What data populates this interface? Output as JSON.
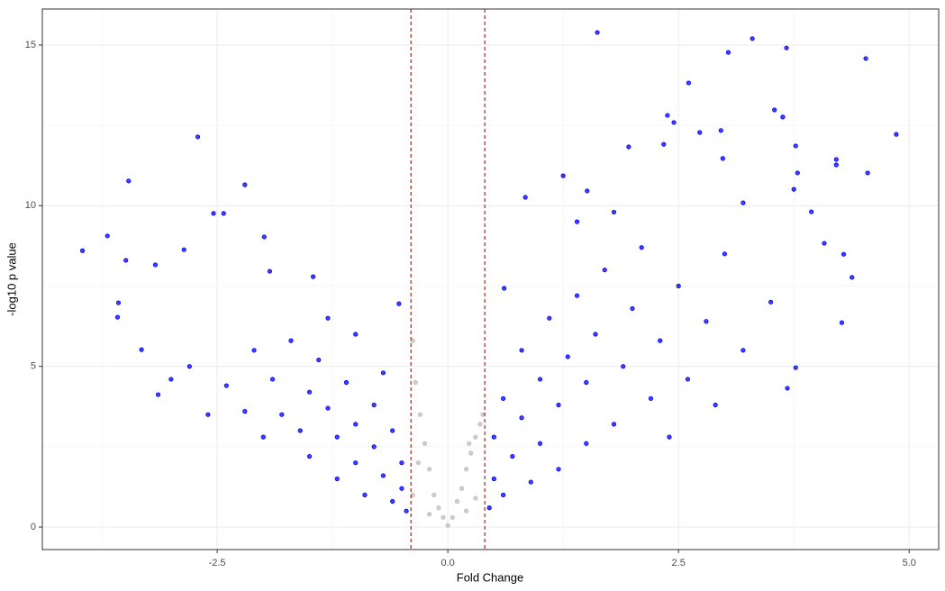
{
  "chart_data": {
    "type": "scatter",
    "x_label": "Fold Change",
    "y_label": "-log10 p value",
    "xlim": [
      -4.395,
      5.32
    ],
    "ylim": [
      -0.7,
      16.12
    ],
    "xticks": [
      -2.5,
      {
        "value": 0,
        "label": "0.0"
      },
      2.5,
      {
        "value": 5,
        "label": "5.0"
      }
    ],
    "yticks": [
      0,
      5,
      10,
      15
    ],
    "x_minor_grid": [
      -3.75,
      -1.25,
      1.25,
      3.75
    ],
    "y_minor_grid": [
      2.5,
      7.5,
      12.5
    ],
    "grid": true,
    "vlines": [
      -0.4,
      0.4
    ],
    "vline_color": "#8b0000",
    "series": [
      {
        "color": "#0000ff",
        "x": [
          -3.96,
          -3.69,
          -3.46,
          -2.71,
          -2.2,
          -2.54,
          -2.43,
          -1.99,
          -3.49,
          -2.86,
          -3.17,
          -3.57,
          -3.58,
          -3.32,
          -3.14,
          -1.93,
          -1.46,
          -0.53,
          -0.45,
          -0.5,
          -0.5,
          -0.6,
          -0.6,
          -0.7,
          -0.8,
          -0.8,
          -0.9,
          -1.0,
          -1.0,
          -1.1,
          -1.2,
          -1.2,
          -1.3,
          -1.4,
          -1.5,
          -1.5,
          -1.6,
          -1.7,
          -1.8,
          -1.9,
          -2.0,
          -2.1,
          -2.2,
          -2.4,
          -2.6,
          -2.8,
          -3.0,
          -0.7,
          -1.0,
          -1.3,
          1.62,
          3.3,
          3.04,
          3.67,
          4.53,
          2.61,
          3.54,
          3.63,
          2.38,
          2.45,
          4.86,
          2.73,
          2.96,
          3.77,
          2.34,
          1.96,
          4.21,
          4.21,
          4.55,
          3.79,
          2.98,
          0.84,
          3.75,
          3.94,
          4.08,
          4.29,
          4.38,
          4.27,
          3.77,
          3.68,
          0.61,
          1.25,
          1.51,
          3.2,
          0.45,
          0.5,
          0.5,
          0.6,
          0.6,
          0.7,
          0.8,
          0.8,
          0.9,
          1.0,
          1.0,
          1.1,
          1.2,
          1.2,
          1.3,
          1.4,
          1.5,
          1.5,
          1.6,
          1.7,
          1.8,
          1.9,
          2.0,
          2.1,
          2.2,
          2.3,
          2.5,
          2.6,
          2.8,
          3.0,
          3.2,
          3.5,
          1.4,
          1.8,
          2.4,
          2.9
        ],
        "values": [
          8.6,
          9.06,
          10.77,
          12.14,
          10.65,
          9.76,
          9.76,
          9.03,
          8.3,
          8.63,
          8.16,
          6.98,
          6.53,
          5.52,
          4.12,
          7.96,
          7.79,
          6.95,
          0.5,
          1.2,
          2.0,
          3.0,
          0.8,
          1.6,
          2.5,
          3.8,
          1.0,
          2.0,
          3.2,
          4.5,
          1.5,
          2.8,
          3.7,
          5.2,
          2.2,
          4.2,
          3.0,
          5.8,
          3.5,
          4.6,
          2.8,
          5.5,
          3.6,
          4.4,
          3.5,
          5.0,
          4.6,
          4.8,
          6.0,
          6.5,
          15.39,
          15.2,
          14.77,
          14.91,
          14.58,
          13.82,
          12.98,
          12.76,
          12.81,
          12.59,
          12.22,
          12.28,
          12.34,
          11.86,
          11.91,
          11.83,
          11.44,
          11.27,
          11.02,
          11.02,
          11.47,
          10.26,
          10.51,
          9.81,
          8.83,
          8.49,
          7.77,
          6.36,
          4.96,
          4.32,
          7.43,
          10.93,
          10.46,
          10.09,
          0.6,
          1.5,
          2.8,
          1.0,
          4.0,
          2.2,
          3.4,
          5.5,
          1.4,
          2.6,
          4.6,
          6.5,
          1.8,
          3.8,
          5.3,
          7.2,
          2.6,
          4.5,
          6.0,
          8.0,
          3.2,
          5.0,
          6.8,
          8.7,
          4.0,
          5.8,
          7.5,
          4.6,
          6.4,
          8.5,
          5.5,
          7.0,
          9.5,
          9.8,
          2.8,
          3.8
        ]
      },
      {
        "color": "#bebebe",
        "x": [
          -0.38,
          -0.35,
          -0.3,
          -0.32,
          -0.25,
          -0.2,
          -0.15,
          -0.1,
          -0.05,
          0,
          0.05,
          0.1,
          0.15,
          0.2,
          0.25,
          0.3,
          0.35,
          0.38,
          -0.38,
          0.3,
          -0.2,
          0.2,
          0.23
        ],
        "values": [
          5.8,
          4.5,
          3.5,
          2.0,
          2.6,
          1.8,
          1.0,
          0.6,
          0.3,
          0.05,
          0.3,
          0.8,
          1.2,
          1.8,
          2.3,
          2.8,
          3.2,
          3.5,
          1.0,
          0.9,
          0.4,
          0.5,
          2.6
        ]
      }
    ]
  }
}
